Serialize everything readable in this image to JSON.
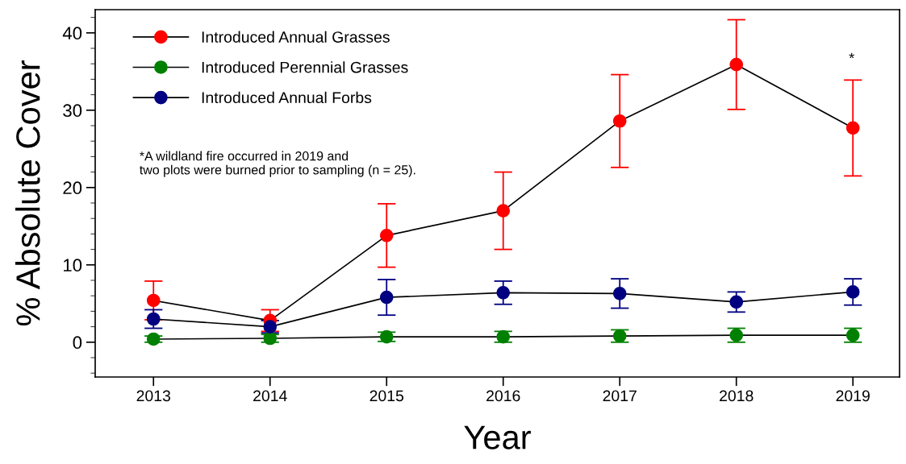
{
  "chart_data": {
    "type": "line",
    "xlabel": "Year",
    "ylabel": "% Absolute Cover",
    "x": [
      2013,
      2014,
      2015,
      2016,
      2017,
      2018,
      2019
    ],
    "series": [
      {
        "name": "Introduced Annual Grasses",
        "color": "#ff0000",
        "values": [
          5.4,
          2.8,
          13.8,
          17.0,
          28.6,
          35.9,
          27.7
        ],
        "errors": [
          2.5,
          1.4,
          4.1,
          5.0,
          6.0,
          5.8,
          6.2
        ]
      },
      {
        "name": "Introduced Perennial Grasses",
        "color": "#008000",
        "values": [
          0.4,
          0.5,
          0.7,
          0.7,
          0.8,
          0.9,
          0.9
        ],
        "errors": [
          0.4,
          0.5,
          0.6,
          0.7,
          0.8,
          0.9,
          0.9
        ]
      },
      {
        "name": "Introduced Annual Forbs",
        "color": "#000080",
        "values": [
          3.0,
          2.0,
          5.8,
          6.4,
          6.3,
          5.2,
          6.5
        ],
        "errors": [
          1.2,
          0.8,
          2.3,
          1.5,
          1.9,
          1.3,
          1.7
        ]
      }
    ],
    "xlim": [
      2012.5,
      2019.4
    ],
    "xticks": [
      2013,
      2014,
      2015,
      2016,
      2017,
      2018,
      2019
    ],
    "ylim": [
      -4.5,
      43
    ],
    "yticks": [
      0,
      10,
      20,
      30,
      40
    ],
    "marker": "circle",
    "line_style": "solid",
    "grid": false,
    "legend": "top left",
    "annotations": [
      "*",
      "*A wildland fire occurred in 2019 and\ntwo plots were burned prior to sampling (n = 25)."
    ]
  }
}
